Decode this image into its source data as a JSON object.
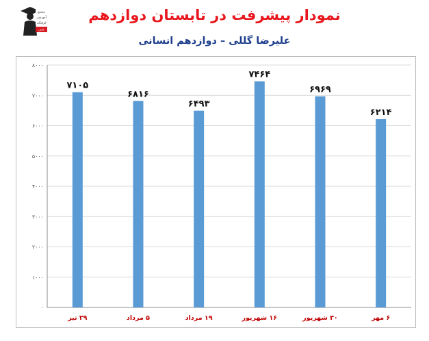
{
  "header": {
    "title": "نمودار پیشرفت در تابستان دوازدهم",
    "subtitle": "علیرضا گللی – دوازدهم انسانی",
    "logo_text": [
      "مجتمع",
      "آموزشی",
      "فرهنگی",
      "تلاش"
    ]
  },
  "colors": {
    "bar": "#5b9bd5",
    "title": "#e8161d",
    "subtitle": "#1f3f8c",
    "category": "#c00000",
    "grid": "#d9d9d9"
  },
  "chart_data": {
    "type": "bar",
    "title": "",
    "xlabel": "",
    "ylabel": "",
    "categories": [
      "۲۹ تیر",
      "۵ مرداد",
      "۱۹ مرداد",
      "۱۶ شهریور",
      "۳۰ شهریور",
      "۶ مهر"
    ],
    "values": [
      7105,
      6816,
      6493,
      7464,
      6969,
      6214
    ],
    "value_labels": [
      "۷۱۰۵",
      "۶۸۱۶",
      "۶۴۹۳",
      "۷۴۶۴",
      "۶۹۶۹",
      "۶۲۱۴"
    ],
    "ylim": [
      0,
      8000
    ],
    "yticks": [
      0,
      1000,
      2000,
      3000,
      4000,
      5000,
      6000,
      7000,
      8000
    ],
    "ytick_labels": [
      "۰",
      "۱۰۰۰",
      "۲۰۰۰",
      "۳۰۰۰",
      "۴۰۰۰",
      "۵۰۰۰",
      "۶۰۰۰",
      "۷۰۰۰",
      "۸۰۰۰"
    ],
    "grid": true,
    "legend": "none"
  }
}
